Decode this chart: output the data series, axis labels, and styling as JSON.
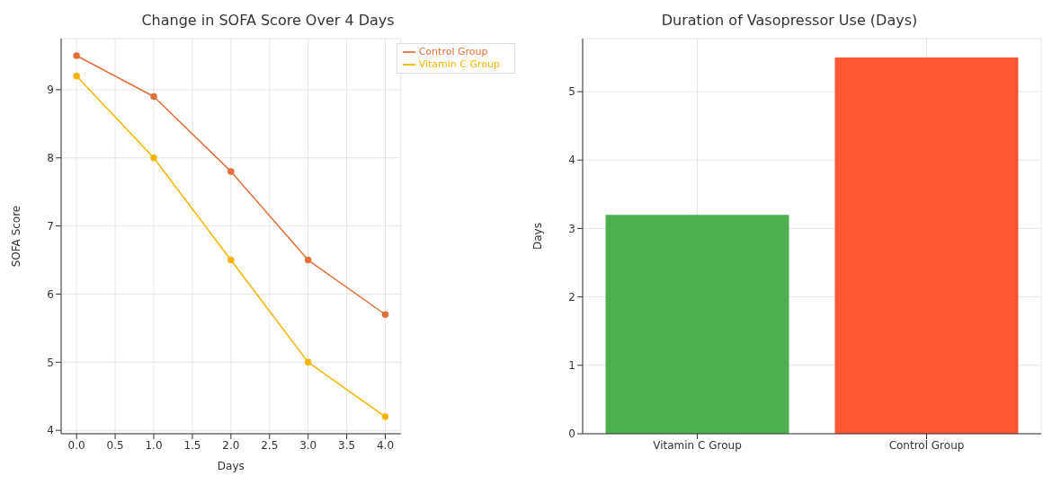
{
  "chart_data": [
    {
      "type": "line",
      "title": "Change in SOFA Score Over 4 Days",
      "xlabel": "Days",
      "ylabel": "SOFA Score",
      "x": [
        0,
        1,
        2,
        3,
        4
      ],
      "series": [
        {
          "name": "Vitamin C Group",
          "color": "#f4b400",
          "values": [
            9.2,
            8.0,
            6.5,
            5.0,
            4.2
          ]
        },
        {
          "name": "Control Group",
          "color": "#e0703a",
          "values": [
            9.5,
            8.9,
            7.8,
            6.5,
            5.7
          ]
        }
      ],
      "xlim": [
        -0.2,
        4.2
      ],
      "xticks": [
        {
          "value": 0,
          "label": "0.0"
        },
        0.5,
        {
          "value": 1,
          "label": "1.0"
        },
        1.5,
        {
          "value": 2,
          "label": "2.0"
        },
        2.5,
        {
          "value": 3,
          "label": "3.0"
        },
        3.5,
        {
          "value": 4,
          "label": "4.0"
        }
      ],
      "ylim": [
        3.95,
        9.75
      ],
      "yticks": [
        4,
        5,
        6,
        7,
        8,
        9
      ],
      "grid": true,
      "legend": "top right",
      "marker": "circle",
      "line_style": "solid"
    },
    {
      "type": "bar",
      "title": "Duration of Vasopressor Use (Days)",
      "ylabel": "Days",
      "categories": [
        "Vitamin C Group",
        "Control Group"
      ],
      "values": [
        3.2,
        5.5
      ],
      "colors": [
        "#4caf50",
        "#ff5733"
      ],
      "ylim": [
        0,
        5.775
      ],
      "yticks": [
        0,
        1,
        2,
        3,
        4,
        5
      ],
      "grid": true
    }
  ]
}
